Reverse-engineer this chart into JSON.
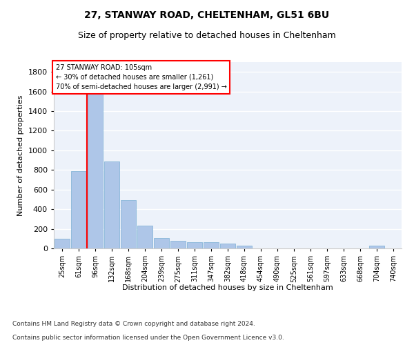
{
  "title1": "27, STANWAY ROAD, CHELTENHAM, GL51 6BU",
  "title2": "Size of property relative to detached houses in Cheltenham",
  "xlabel": "Distribution of detached houses by size in Cheltenham",
  "ylabel": "Number of detached properties",
  "footnote1": "Contains HM Land Registry data © Crown copyright and database right 2024.",
  "footnote2": "Contains public sector information licensed under the Open Government Licence v3.0.",
  "bins": [
    "25sqm",
    "61sqm",
    "96sqm",
    "132sqm",
    "168sqm",
    "204sqm",
    "239sqm",
    "275sqm",
    "311sqm",
    "347sqm",
    "382sqm",
    "418sqm",
    "454sqm",
    "490sqm",
    "525sqm",
    "561sqm",
    "597sqm",
    "633sqm",
    "668sqm",
    "704sqm",
    "740sqm"
  ],
  "values": [
    100,
    790,
    1660,
    890,
    490,
    230,
    105,
    75,
    65,
    60,
    50,
    25,
    0,
    0,
    0,
    0,
    0,
    0,
    0,
    25,
    0
  ],
  "bar_color": "#aec6e8",
  "bar_edge_color": "#7aafd4",
  "vline_color": "red",
  "annotation_line1": "27 STANWAY ROAD: 105sqm",
  "annotation_line2": "← 30% of detached houses are smaller (1,261)",
  "annotation_line3": "70% of semi-detached houses are larger (2,991) →",
  "annotation_box_color": "white",
  "annotation_box_edge_color": "red",
  "ylim": [
    0,
    1900
  ],
  "yticks": [
    0,
    200,
    400,
    600,
    800,
    1000,
    1200,
    1400,
    1600,
    1800
  ],
  "background_color": "#edf2fa",
  "grid_color": "white"
}
